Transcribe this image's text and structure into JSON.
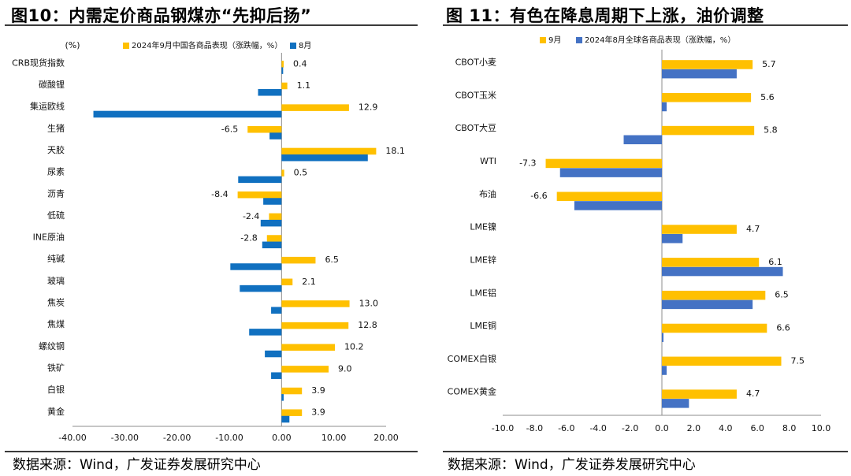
{
  "left": {
    "title": "图10：内需定价商品钢煤亦“先抑后扬”",
    "source": "数据来源：Wind，广发证券发展研究中心",
    "colors": {
      "sep": "#FFC000",
      "aug": "#1070C0"
    },
    "chart_data": {
      "type": "bar",
      "orientation": "horizontal",
      "unit_label": "(%)",
      "categories": [
        "CRB现货指数",
        "碳酸锂",
        "集运欧线",
        "生猪",
        "天胶",
        "尿素",
        "沥青",
        "低硫",
        "INE原油",
        "纯碱",
        "玻璃",
        "焦炭",
        "焦煤",
        "螺纹钢",
        "铁矿",
        "白银",
        "黄金"
      ],
      "series": [
        {
          "name": "2024年9月中国各商品表现（涨跌幅，%）",
          "values": [
            0.4,
            1.1,
            12.9,
            -6.5,
            18.1,
            0.5,
            -8.4,
            -2.4,
            -2.8,
            6.5,
            2.1,
            13.0,
            12.8,
            10.2,
            9.0,
            3.9,
            3.9
          ],
          "labels": [
            "0.4",
            "1.1",
            "12.9",
            "-6.5",
            "18.1",
            "0.5",
            "-8.4",
            "-2.4",
            "-2.8",
            "6.5",
            "2.1",
            "13.0",
            "12.8",
            "10.2",
            "9.0",
            "3.9",
            "3.9"
          ]
        },
        {
          "name": "8月",
          "values": [
            0.3,
            -4.5,
            -36.0,
            -2.3,
            16.5,
            -8.3,
            -3.5,
            -4.0,
            -3.7,
            -9.8,
            -8.0,
            -2.0,
            -6.2,
            -3.2,
            -2.0,
            0.4,
            1.5
          ]
        }
      ],
      "xlim": [
        -40,
        20
      ],
      "xticks": [
        "-40.00",
        "-30.00",
        "-20.00",
        "-10.00",
        "0.00",
        "10.00",
        "20.00"
      ],
      "tick_values": [
        -40,
        -30,
        -20,
        -10,
        0,
        10,
        20
      ],
      "grid": false,
      "legend": "top"
    }
  },
  "right": {
    "title": "图 11：有色在降息周期下上涨，油价调整",
    "source": "数据来源：Wind，广发证券发展研究中心",
    "colors": {
      "sep": "#FFC000",
      "aug": "#4472C4"
    },
    "chart_data": {
      "type": "bar",
      "orientation": "horizontal",
      "categories": [
        "CBOT小麦",
        "CBOT玉米",
        "CBOT大豆",
        "WTI",
        "布油",
        "LME镍",
        "LME锌",
        "LME铝",
        "LME铜",
        "COMEX白银",
        "COMEX黄金"
      ],
      "series": [
        {
          "name": "9月",
          "values": [
            5.7,
            5.6,
            5.8,
            -7.3,
            -6.6,
            4.7,
            6.1,
            6.5,
            6.6,
            7.5,
            4.7
          ],
          "labels": [
            "5.7",
            "5.6",
            "5.8",
            "-7.3",
            "-6.6",
            "4.7",
            "6.1",
            "6.5",
            "6.6",
            "7.5",
            "4.7"
          ]
        },
        {
          "name": "2024年8月全球各商品表现（涨跌幅，%）",
          "values": [
            4.7,
            0.3,
            -2.4,
            -6.4,
            -5.5,
            1.3,
            7.6,
            5.7,
            0.1,
            0.3,
            1.7
          ]
        }
      ],
      "xlim": [
        -10,
        10
      ],
      "xticks": [
        "-10.0",
        "-8.0",
        "-6.0",
        "-4.0",
        "-2.0",
        "0.0",
        "2.0",
        "4.0",
        "6.0",
        "8.0",
        "10.0"
      ],
      "tick_values": [
        -10,
        -8,
        -6,
        -4,
        -2,
        0,
        2,
        4,
        6,
        8,
        10
      ],
      "grid": false,
      "legend": "top"
    }
  }
}
